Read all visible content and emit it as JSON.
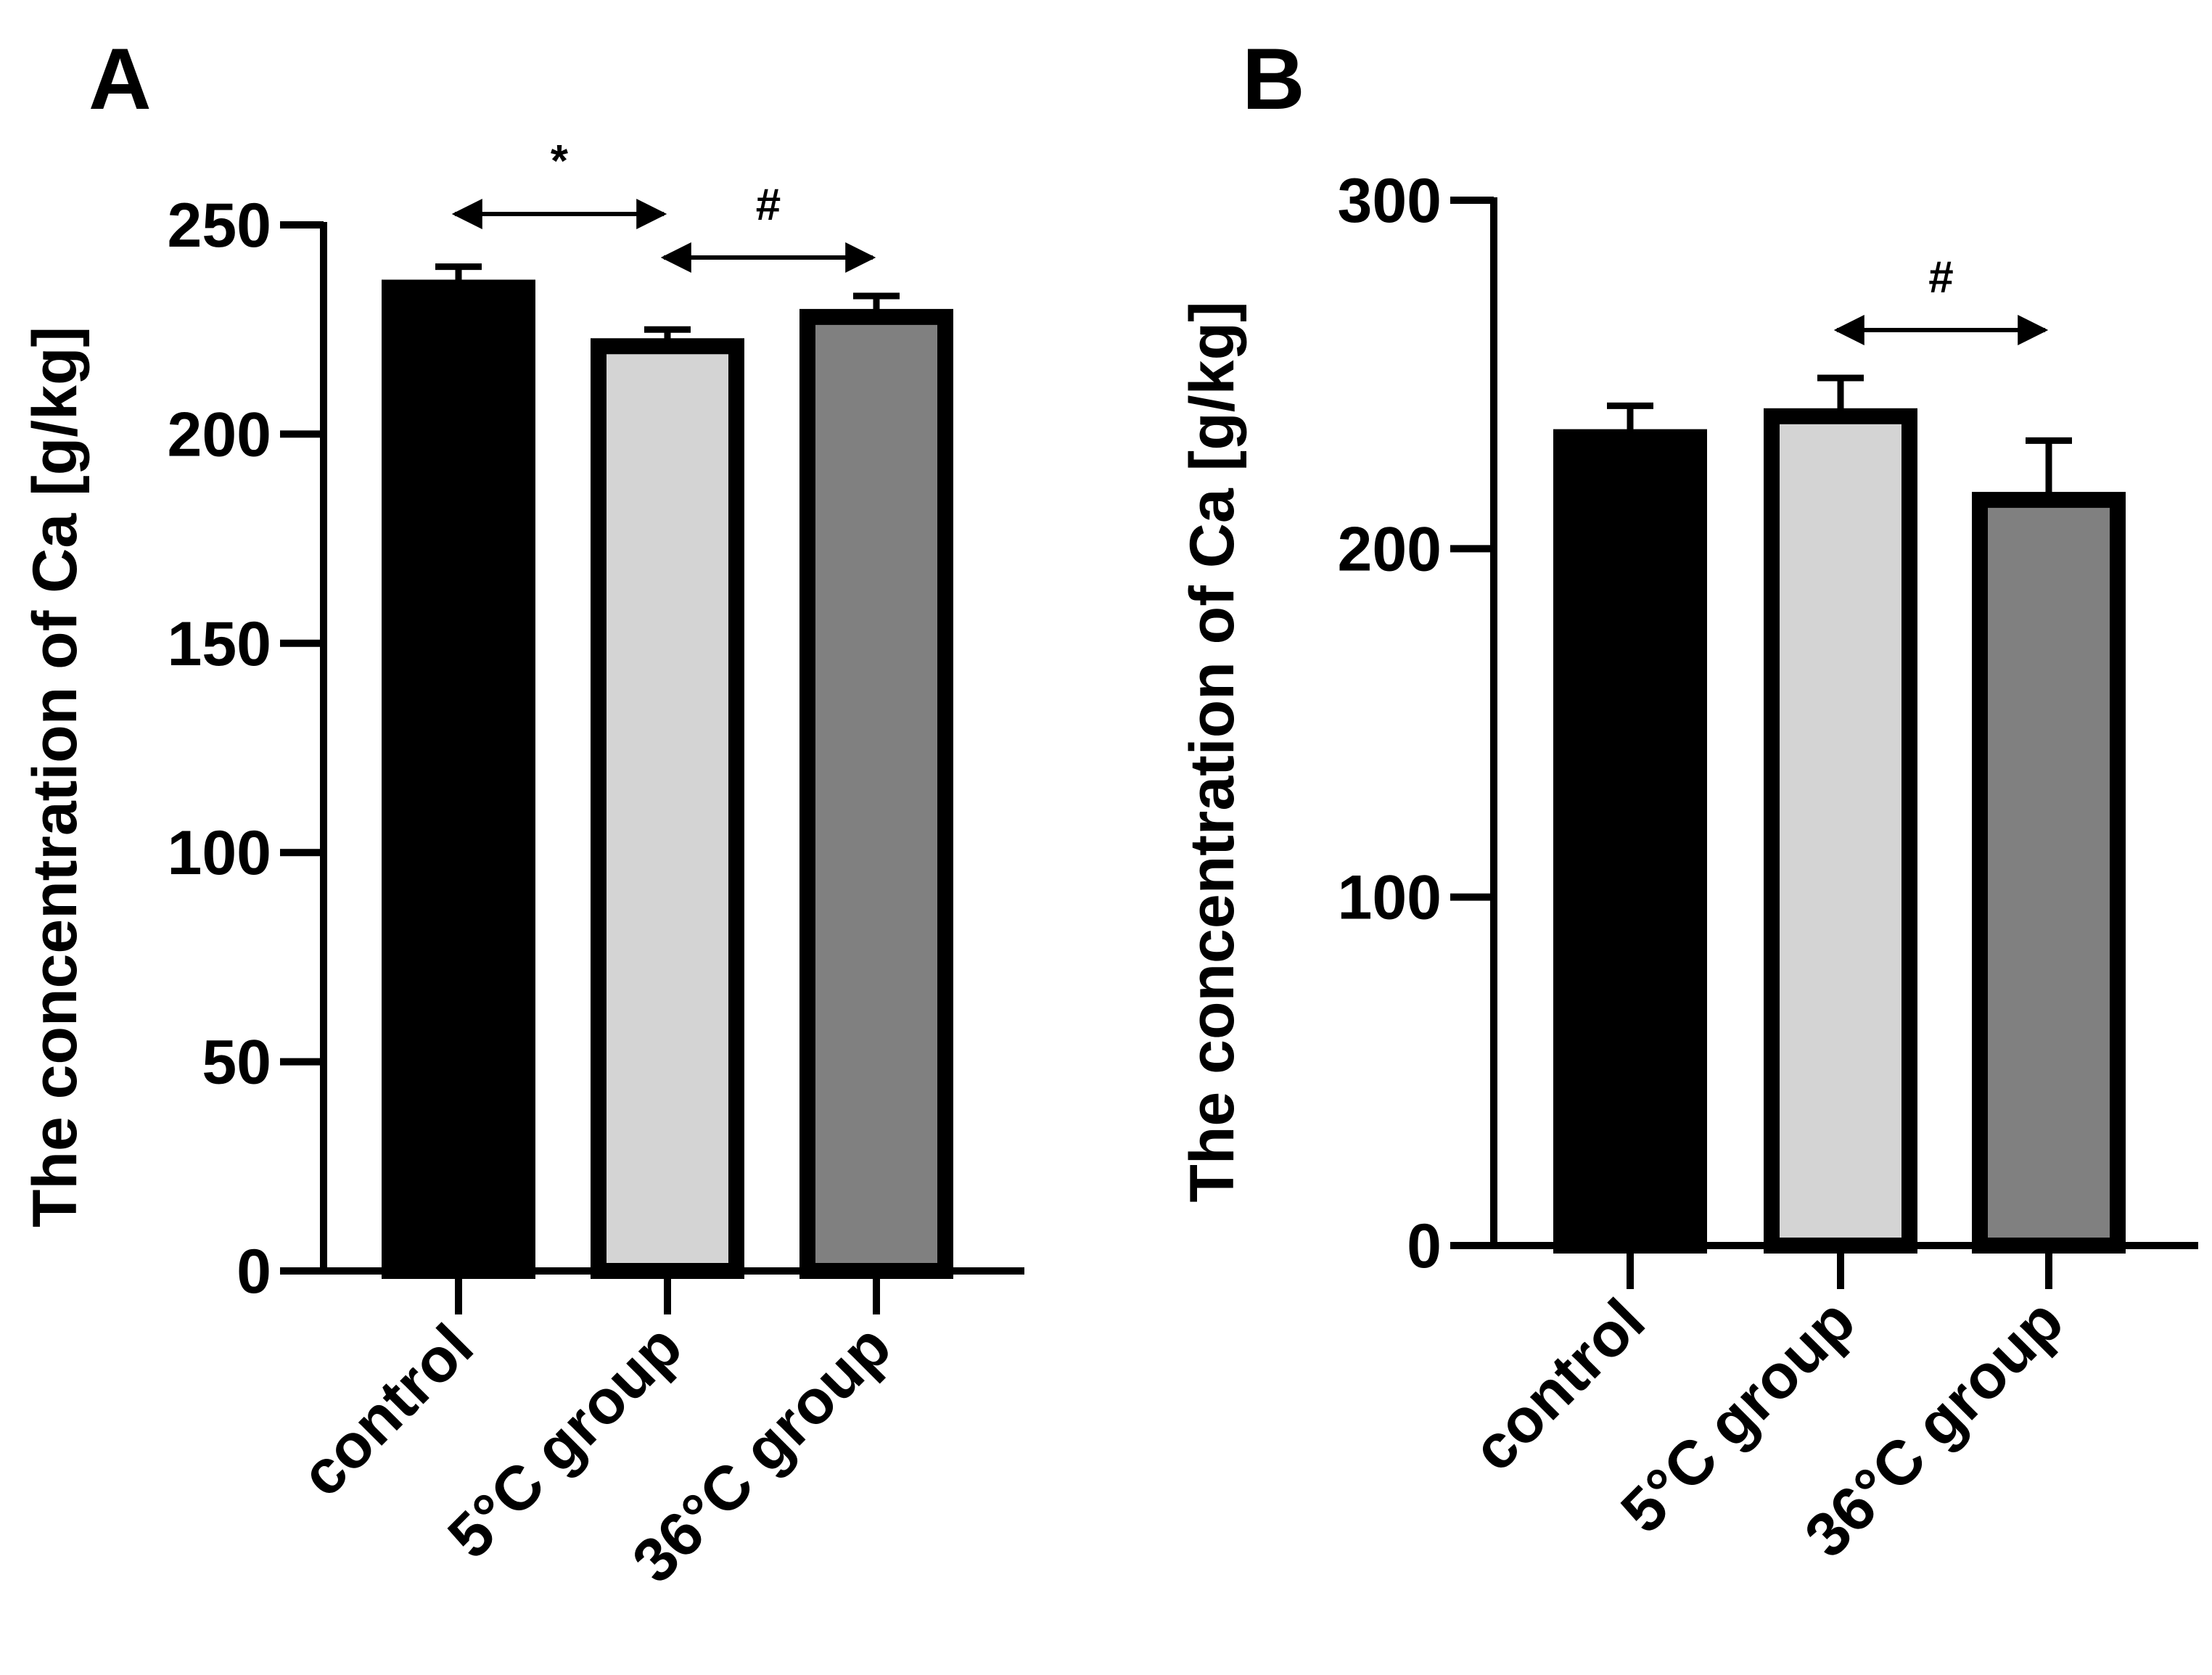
{
  "chart_data": [
    {
      "panel": "A",
      "type": "bar",
      "categories": [
        "control",
        "5°C group",
        "36°C group"
      ],
      "values": [
        235,
        221,
        228
      ],
      "errors": [
        5,
        4,
        5
      ],
      "bar_colors": [
        "#000000",
        "#d4d4d4",
        "#808080"
      ],
      "ylabel": "The concentration of Ca [g/kg]",
      "xlabel": "",
      "ylim": [
        0,
        250
      ],
      "yticks": [
        0,
        50,
        100,
        150,
        200,
        250
      ],
      "grid": false,
      "significance": [
        {
          "from": 0,
          "to": 1,
          "label": "*"
        },
        {
          "from": 1,
          "to": 2,
          "label": "#"
        }
      ]
    },
    {
      "panel": "B",
      "type": "bar",
      "categories": [
        "control",
        "5°C group",
        "36°C group"
      ],
      "values": [
        232,
        238,
        214
      ],
      "errors": [
        9,
        11,
        17
      ],
      "bar_colors": [
        "#000000",
        "#d4d4d4",
        "#808080"
      ],
      "ylabel": "The concentration of Ca [g/kg]",
      "xlabel": "",
      "ylim": [
        0,
        300
      ],
      "yticks": [
        0,
        100,
        200,
        300
      ],
      "grid": false,
      "significance": [
        {
          "from": 1,
          "to": 2,
          "label": "#"
        }
      ]
    }
  ]
}
